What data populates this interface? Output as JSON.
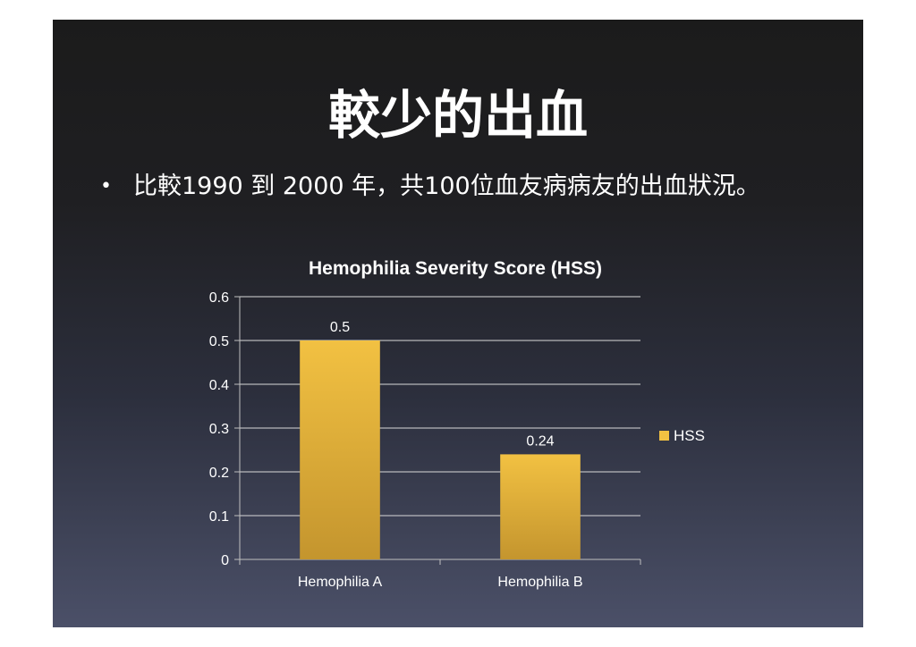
{
  "slide": {
    "title": "較少的出血",
    "bullet_text": "比較1990 到 2000 年，共100位血友病病友的出血狀況。",
    "bullet_symbol": "•"
  },
  "chart_data": {
    "type": "bar",
    "title": "Hemophilia Severity Score (HSS)",
    "categories": [
      "Hemophilia A",
      "Hemophilia B"
    ],
    "series": [
      {
        "name": "HSS",
        "values": [
          0.5,
          0.24
        ],
        "data_labels": [
          "0.5",
          "0.24"
        ]
      }
    ],
    "ylim": [
      0,
      0.6
    ],
    "y_ticks": [
      0,
      0.1,
      0.2,
      0.3,
      0.4,
      0.5,
      0.6
    ],
    "y_tick_labels": [
      "0",
      "0.1",
      "0.2",
      "0.3",
      "0.4",
      "0.5",
      "0.6"
    ],
    "xlabel": "",
    "ylabel": "",
    "grid": true,
    "legend_position": "right",
    "colors": {
      "bar_top": "#f2c142",
      "bar_bottom": "#c4952e",
      "text": "#ffffff",
      "axis": "#bfbfbf",
      "grid": "#d9d9d9"
    }
  }
}
